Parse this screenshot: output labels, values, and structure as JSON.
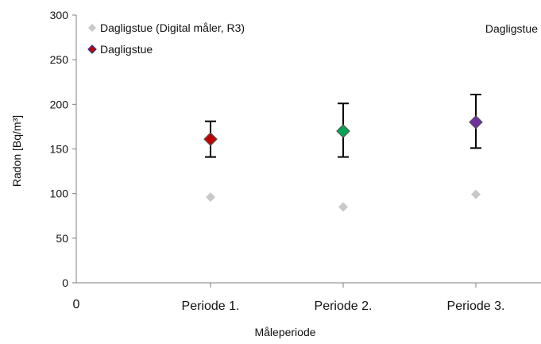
{
  "chart_data": {
    "type": "scatter",
    "categories": [
      "Periode 1.",
      "Periode 2.",
      "Periode 3."
    ],
    "xlabel": "Måleperiode",
    "ylabel": "Radon [Bq/m³]",
    "ylim": [
      0,
      300
    ],
    "yticks": [
      0,
      50,
      100,
      150,
      200,
      250,
      300
    ],
    "x_origin_label": "0",
    "grid": false,
    "annotation": "Dagligstue",
    "legend": {
      "placement": "top-left",
      "entries": [
        {
          "label": "Dagligstue (Digital måler, R3)",
          "color": "#c8c8c8"
        },
        {
          "label": "Dagligstue",
          "color": "#c00000",
          "border_color": "#1f3a93"
        }
      ]
    },
    "series": [
      {
        "name": "Dagligstue (Digital måler, R3)",
        "color": "#c8c8c8",
        "values": [
          96,
          85,
          99
        ]
      },
      {
        "name": "Dagligstue",
        "values": [
          161,
          170,
          180
        ],
        "colors": [
          "#c00000",
          "#00a651",
          "#7030a0"
        ],
        "error_low": [
          141,
          141,
          151
        ],
        "error_high": [
          181,
          201,
          211
        ]
      }
    ]
  }
}
